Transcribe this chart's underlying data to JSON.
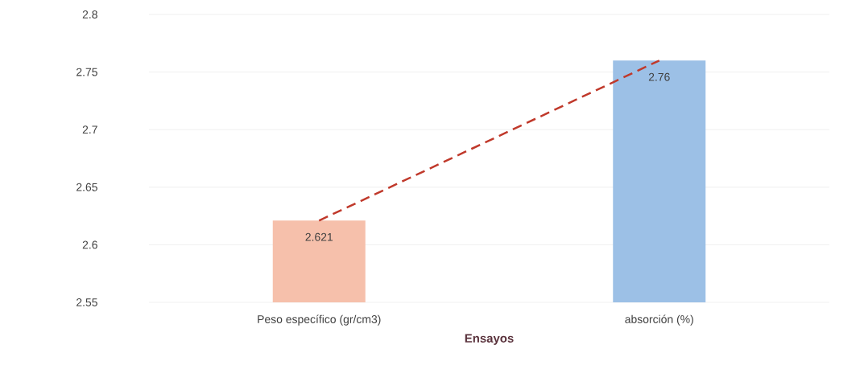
{
  "chart_data": {
    "type": "bar",
    "xlabel": "Ensayos",
    "categories": [
      "Peso específico (gr/cm3)",
      "absorción (%)"
    ],
    "series": [
      {
        "colors": [
          "#f6c0ab",
          "#9cc0e6"
        ],
        "values": [
          2.621,
          2.76
        ],
        "value_labels": [
          "2.621",
          "2.76"
        ]
      },
      {
        "type": "line",
        "color": "#c0392b",
        "line_style": "dashed",
        "values": [
          2.621,
          2.76
        ]
      }
    ],
    "ylim": [
      2.55,
      2.8
    ],
    "yticks": [
      2.55,
      2.6,
      2.65,
      2.7,
      2.75,
      2.8
    ],
    "grid": "y"
  }
}
